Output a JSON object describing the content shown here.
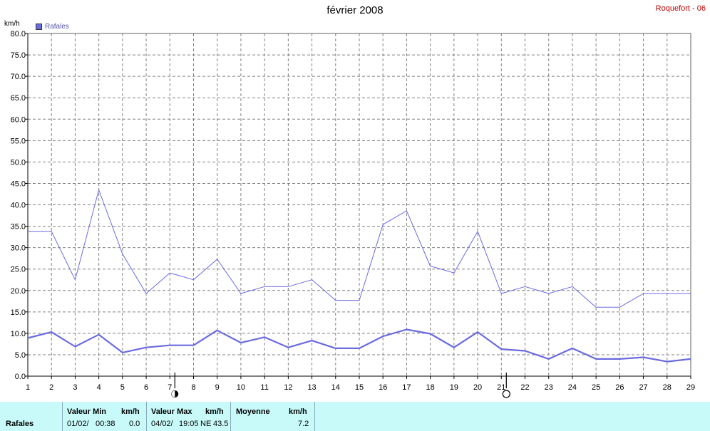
{
  "header": {
    "title": "février 2008",
    "station": "Roquefort - 06",
    "unit": "km/h",
    "legend_label": "Rafales"
  },
  "colors": {
    "series": "#6a6ae0",
    "grid": "#808080",
    "station": "#c00000",
    "stats_bg": "#c8fafa"
  },
  "moon_phases": [
    {
      "day": 7,
      "icon": "full-moon-icon"
    },
    {
      "day": 21,
      "icon": "new-moon-icon"
    }
  ],
  "chart_data": {
    "type": "line",
    "title": "février 2008",
    "ylabel": "km/h",
    "xlabel": "",
    "ylim": [
      0,
      80
    ],
    "xlim": [
      1,
      29
    ],
    "grid": true,
    "legend_position": "top-left",
    "y_ticks": [
      "0.0",
      "5.0",
      "10.0",
      "15.0",
      "20.0",
      "25.0",
      "30.0",
      "35.0",
      "40.0",
      "45.0",
      "50.0",
      "55.0",
      "60.0",
      "65.0",
      "70.0",
      "75.0",
      "80.0"
    ],
    "x_ticks": [
      "1",
      "2",
      "3",
      "4",
      "5",
      "6",
      "7",
      "8",
      "9",
      "10",
      "11",
      "12",
      "13",
      "14",
      "15",
      "16",
      "17",
      "18",
      "19",
      "20",
      "21",
      "22",
      "23",
      "24",
      "25",
      "26",
      "27",
      "28",
      "29"
    ],
    "series": [
      {
        "name": "Rafales",
        "x": [
          1,
          2,
          3,
          4,
          5,
          6,
          7,
          8,
          9,
          10,
          11,
          12,
          13,
          14,
          15,
          16,
          17,
          18,
          19,
          20,
          21,
          22,
          23,
          24,
          25,
          26,
          27,
          28,
          29
        ],
        "values": [
          33.8,
          33.8,
          22.5,
          43.5,
          28.5,
          19.3,
          24.1,
          22.5,
          27.3,
          19.3,
          20.9,
          20.9,
          22.5,
          17.7,
          17.7,
          35.4,
          38.6,
          25.7,
          24.1,
          33.8,
          19.3,
          20.9,
          19.3,
          20.9,
          16.1,
          16.1,
          19.3,
          19.3,
          19.3
        ]
      },
      {
        "x": [
          1,
          2,
          3,
          4,
          5,
          6,
          7,
          8,
          9,
          10,
          11,
          12,
          13,
          14,
          15,
          16,
          17,
          18,
          19,
          20,
          21,
          22,
          23,
          24,
          25,
          26,
          27,
          28,
          29
        ],
        "values": [
          8.9,
          10.3,
          6.9,
          9.7,
          5.5,
          6.7,
          7.2,
          7.2,
          10.7,
          7.8,
          9.1,
          6.7,
          8.3,
          6.5,
          6.5,
          9.3,
          10.9,
          9.9,
          6.7,
          10.3,
          6.3,
          5.9,
          4.0,
          6.5,
          4.0,
          4.0,
          4.4,
          3.4,
          4.0
        ]
      }
    ]
  },
  "stats": {
    "row_label": "Rafales",
    "min_header": "Valeur Min",
    "min_unit": "km/h",
    "min_date": "01/02/",
    "min_time": "00:38",
    "min_value": "0.0",
    "max_header": "Valeur Max",
    "max_unit": "km/h",
    "max_date": "04/02/",
    "max_time": "19:05",
    "max_dir": "NE",
    "max_value": "43.5",
    "avg_header": "Moyenne",
    "avg_unit": "km/h",
    "avg_value": "7.2"
  }
}
